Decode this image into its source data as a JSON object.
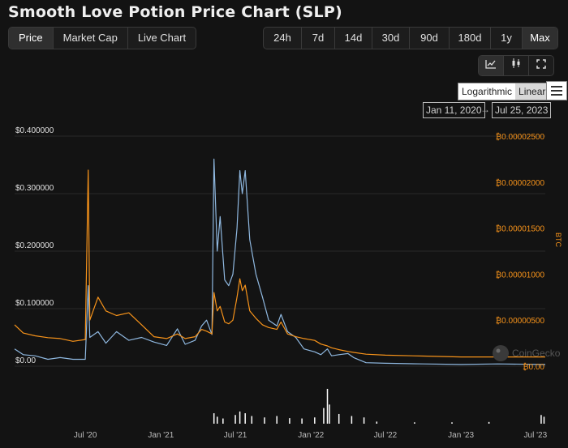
{
  "page": {
    "title": "Smooth Love Potion Price Chart (SLP)"
  },
  "tabs": [
    {
      "label": "Price",
      "active": true
    },
    {
      "label": "Market Cap",
      "active": false
    },
    {
      "label": "Live Chart",
      "active": false
    }
  ],
  "ranges": [
    {
      "label": "24h",
      "active": false
    },
    {
      "label": "7d",
      "active": false
    },
    {
      "label": "14d",
      "active": false
    },
    {
      "label": "30d",
      "active": false
    },
    {
      "label": "90d",
      "active": false
    },
    {
      "label": "180d",
      "active": false
    },
    {
      "label": "1y",
      "active": false
    },
    {
      "label": "Max",
      "active": true
    }
  ],
  "chart_styles": [
    {
      "icon": "line-chart-icon"
    },
    {
      "icon": "candlestick-icon"
    },
    {
      "icon": "fullscreen-icon"
    }
  ],
  "scale": {
    "log_label": "Logarithmic",
    "linear_label": "Linear",
    "selected": "Linear"
  },
  "date_range": {
    "from": "Jan 11, 2020",
    "to": "Jul 25, 2023",
    "arrow": "→"
  },
  "watermark": "CoinGecko",
  "colors": {
    "usd_line": "#8fb8e0",
    "btc_line": "#f7931a",
    "volume": "#ffffff",
    "background": "#131313"
  },
  "chart_data": {
    "type": "line",
    "x_tick_labels": [
      "Jul '20",
      "Jan '21",
      "Jul '21",
      "Jan '22",
      "Jul '22",
      "Jan '23",
      "Jul '23"
    ],
    "x_ticks": [
      "2020-07-01",
      "2021-01-01",
      "2021-07-01",
      "2022-01-01",
      "2022-07-01",
      "2023-01-01",
      "2023-07-01"
    ],
    "x_range": [
      "2020-01-11",
      "2023-07-25"
    ],
    "y_left": {
      "ticks": [
        "$0.00",
        "$0.100000",
        "$0.200000",
        "$0.300000",
        "$0.400000"
      ],
      "range": [
        0,
        0.4
      ]
    },
    "y_right": {
      "label": "BTC",
      "ticks": [
        "₿0.00",
        "₿0.00000500",
        "₿0.00001000",
        "₿0.00001500",
        "₿0.00002000",
        "₿0.00002500"
      ],
      "range": [
        0,
        2.5e-05
      ]
    },
    "grid": true,
    "series": [
      {
        "axis": "left",
        "color": "#8fb8e0",
        "points": [
          [
            "2020-01-11",
            0.03
          ],
          [
            "2020-02-01",
            0.02
          ],
          [
            "2020-03-01",
            0.018
          ],
          [
            "2020-04-01",
            0.012
          ],
          [
            "2020-05-01",
            0.015
          ],
          [
            "2020-06-01",
            0.012
          ],
          [
            "2020-07-01",
            0.012
          ],
          [
            "2020-07-08",
            0.14
          ],
          [
            "2020-07-12",
            0.05
          ],
          [
            "2020-08-01",
            0.06
          ],
          [
            "2020-08-20",
            0.04
          ],
          [
            "2020-09-15",
            0.06
          ],
          [
            "2020-10-15",
            0.045
          ],
          [
            "2020-11-15",
            0.05
          ],
          [
            "2020-12-15",
            0.042
          ],
          [
            "2021-01-15",
            0.036
          ],
          [
            "2021-02-10",
            0.065
          ],
          [
            "2021-03-01",
            0.038
          ],
          [
            "2021-03-25",
            0.045
          ],
          [
            "2021-04-10",
            0.07
          ],
          [
            "2021-04-22",
            0.08
          ],
          [
            "2021-05-05",
            0.055
          ],
          [
            "2021-05-10",
            0.36
          ],
          [
            "2021-05-18",
            0.2
          ],
          [
            "2021-05-25",
            0.26
          ],
          [
            "2021-06-05",
            0.15
          ],
          [
            "2021-06-15",
            0.14
          ],
          [
            "2021-06-25",
            0.16
          ],
          [
            "2021-07-05",
            0.24
          ],
          [
            "2021-07-12",
            0.34
          ],
          [
            "2021-07-18",
            0.3
          ],
          [
            "2021-07-25",
            0.34
          ],
          [
            "2021-08-05",
            0.22
          ],
          [
            "2021-08-20",
            0.16
          ],
          [
            "2021-09-05",
            0.12
          ],
          [
            "2021-09-20",
            0.08
          ],
          [
            "2021-10-10",
            0.07
          ],
          [
            "2021-10-20",
            0.09
          ],
          [
            "2021-11-05",
            0.06
          ],
          [
            "2021-11-25",
            0.05
          ],
          [
            "2021-12-15",
            0.03
          ],
          [
            "2022-01-10",
            0.025
          ],
          [
            "2022-01-25",
            0.02
          ],
          [
            "2022-02-10",
            0.03
          ],
          [
            "2022-02-20",
            0.018
          ],
          [
            "2022-03-10",
            0.02
          ],
          [
            "2022-04-01",
            0.022
          ],
          [
            "2022-04-15",
            0.015
          ],
          [
            "2022-05-15",
            0.006
          ],
          [
            "2022-07-01",
            0.005
          ],
          [
            "2022-10-01",
            0.004
          ],
          [
            "2023-01-01",
            0.003
          ],
          [
            "2023-04-01",
            0.004
          ],
          [
            "2023-07-25",
            0.003
          ]
        ]
      },
      {
        "axis": "right",
        "color": "#f7931a",
        "points": [
          [
            "2020-01-11",
            4.5e-06
          ],
          [
            "2020-02-01",
            3.6e-06
          ],
          [
            "2020-03-01",
            3.3e-06
          ],
          [
            "2020-04-01",
            3.1e-06
          ],
          [
            "2020-05-01",
            3e-06
          ],
          [
            "2020-06-01",
            2.7e-06
          ],
          [
            "2020-07-01",
            2.9e-06
          ],
          [
            "2020-07-08",
            2.13e-05
          ],
          [
            "2020-07-12",
            5e-06
          ],
          [
            "2020-08-01",
            7.5e-06
          ],
          [
            "2020-08-20",
            6e-06
          ],
          [
            "2020-09-15",
            5.5e-06
          ],
          [
            "2020-10-15",
            5.8e-06
          ],
          [
            "2020-11-15",
            4.5e-06
          ],
          [
            "2020-12-15",
            3.2e-06
          ],
          [
            "2021-01-15",
            3e-06
          ],
          [
            "2021-02-10",
            3.5e-06
          ],
          [
            "2021-03-01",
            3e-06
          ],
          [
            "2021-03-25",
            3.2e-06
          ],
          [
            "2021-04-10",
            4e-06
          ],
          [
            "2021-04-22",
            3.8e-06
          ],
          [
            "2021-05-05",
            3.5e-06
          ],
          [
            "2021-05-10",
            8e-06
          ],
          [
            "2021-05-18",
            6e-06
          ],
          [
            "2021-05-25",
            6.5e-06
          ],
          [
            "2021-06-05",
            4.8e-06
          ],
          [
            "2021-06-15",
            4.6e-06
          ],
          [
            "2021-06-25",
            5e-06
          ],
          [
            "2021-07-05",
            7.5e-06
          ],
          [
            "2021-07-12",
            9.5e-06
          ],
          [
            "2021-07-18",
            8.2e-06
          ],
          [
            "2021-07-25",
            8.8e-06
          ],
          [
            "2021-08-05",
            6e-06
          ],
          [
            "2021-08-20",
            5.2e-06
          ],
          [
            "2021-09-05",
            4.5e-06
          ],
          [
            "2021-09-20",
            4.2e-06
          ],
          [
            "2021-10-10",
            4e-06
          ],
          [
            "2021-10-20",
            4.8e-06
          ],
          [
            "2021-11-05",
            3.5e-06
          ],
          [
            "2021-11-25",
            3.2e-06
          ],
          [
            "2021-12-15",
            3e-06
          ],
          [
            "2022-01-10",
            2.8e-06
          ],
          [
            "2022-01-25",
            2.4e-06
          ],
          [
            "2022-02-10",
            2.2e-06
          ],
          [
            "2022-02-20",
            2e-06
          ],
          [
            "2022-03-10",
            1.8e-06
          ],
          [
            "2022-04-01",
            1.6e-06
          ],
          [
            "2022-04-15",
            1.5e-06
          ],
          [
            "2022-05-15",
            1.3e-06
          ],
          [
            "2022-07-01",
            1.2e-06
          ],
          [
            "2022-10-01",
            1.1e-06
          ],
          [
            "2023-01-01",
            1e-06
          ],
          [
            "2023-04-01",
            1e-06
          ],
          [
            "2023-07-25",
            1e-06
          ]
        ]
      }
    ],
    "volume": [
      [
        "2021-05-10",
        0.3
      ],
      [
        "2021-05-18",
        0.2
      ],
      [
        "2021-06-01",
        0.15
      ],
      [
        "2021-07-01",
        0.25
      ],
      [
        "2021-07-12",
        0.35
      ],
      [
        "2021-07-25",
        0.3
      ],
      [
        "2021-08-10",
        0.22
      ],
      [
        "2021-09-10",
        0.18
      ],
      [
        "2021-10-10",
        0.22
      ],
      [
        "2021-11-10",
        0.16
      ],
      [
        "2021-12-10",
        0.15
      ],
      [
        "2022-01-10",
        0.18
      ],
      [
        "2022-02-01",
        0.45
      ],
      [
        "2022-02-10",
        1.0
      ],
      [
        "2022-02-15",
        0.55
      ],
      [
        "2022-03-10",
        0.28
      ],
      [
        "2022-04-10",
        0.22
      ],
      [
        "2022-05-10",
        0.18
      ],
      [
        "2022-06-10",
        0.06
      ],
      [
        "2022-09-10",
        0.04
      ],
      [
        "2022-12-10",
        0.04
      ],
      [
        "2023-03-10",
        0.05
      ],
      [
        "2023-07-15",
        0.25
      ],
      [
        "2023-07-22",
        0.2
      ]
    ]
  }
}
